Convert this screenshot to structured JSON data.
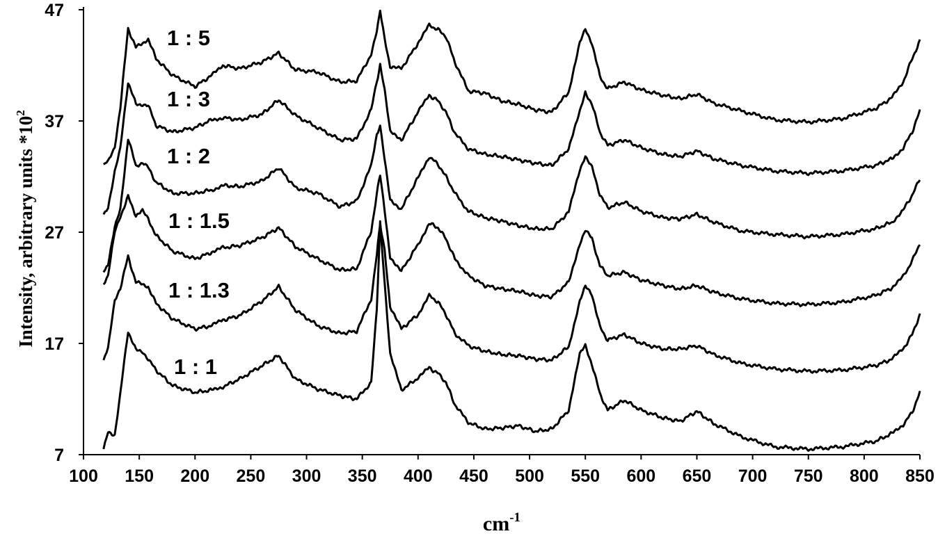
{
  "chart_data": {
    "type": "line",
    "xlabel": "cm",
    "xlabel_sup": "-1",
    "ylabel": "Intensity, arbitrary units *10",
    "ylabel_sup": "2",
    "xlim": [
      100,
      850
    ],
    "ylim": [
      7,
      47
    ],
    "x_ticks": [
      "100",
      "150",
      "200",
      "250",
      "300",
      "350",
      "400",
      "450",
      "500",
      "550",
      "600",
      "650",
      "700",
      "750",
      "800",
      "850"
    ],
    "y_ticks": [
      "7",
      "17",
      "27",
      "37",
      "47"
    ],
    "series": [
      {
        "name": "1 : 5",
        "x": [
          118,
          122,
          128,
          133,
          140,
          147,
          153,
          158,
          165,
          180,
          200,
          215,
          225,
          240,
          260,
          275,
          290,
          310,
          330,
          345,
          358,
          363,
          366,
          370,
          375,
          385,
          400,
          410,
          418,
          425,
          433,
          445,
          460,
          475,
          490,
          505,
          520,
          535,
          545,
          550,
          556,
          563,
          570,
          585,
          600,
          620,
          635,
          650,
          665,
          690,
          720,
          750,
          780,
          810,
          825,
          835,
          843,
          850
        ],
        "values": [
          33.1,
          33.3,
          34.7,
          38.2,
          45.3,
          43.6,
          44.0,
          44.4,
          42.6,
          41.1,
          40.1,
          41.1,
          42.0,
          41.7,
          42.3,
          43.1,
          41.6,
          41.4,
          40.5,
          40.6,
          43.0,
          45.0,
          47.0,
          44.5,
          41.8,
          41.7,
          44.0,
          45.6,
          45.2,
          44.6,
          42.3,
          39.7,
          39.5,
          38.8,
          38.5,
          38.0,
          37.8,
          39.6,
          44.0,
          45.2,
          44.0,
          41.0,
          39.9,
          40.5,
          39.8,
          39.3,
          39.0,
          39.4,
          38.6,
          37.9,
          37.1,
          36.9,
          37.2,
          38.1,
          39.1,
          40.5,
          42.6,
          44.2
        ]
      },
      {
        "name": "1 : 3",
        "x": [
          118,
          122,
          128,
          133,
          140,
          147,
          153,
          158,
          165,
          180,
          200,
          215,
          225,
          240,
          260,
          275,
          290,
          310,
          330,
          345,
          358,
          363,
          366,
          370,
          375,
          385,
          400,
          410,
          418,
          425,
          433,
          445,
          460,
          475,
          490,
          505,
          520,
          535,
          545,
          550,
          556,
          563,
          570,
          585,
          600,
          620,
          635,
          650,
          665,
          690,
          720,
          750,
          780,
          810,
          825,
          835,
          843,
          850
        ],
        "values": [
          28.6,
          29.2,
          32.5,
          34.5,
          40.5,
          38.5,
          38.5,
          38.4,
          36.6,
          36.0,
          36.4,
          37.1,
          37.3,
          37.1,
          37.6,
          38.9,
          37.5,
          36.4,
          35.3,
          35.4,
          38.0,
          40.5,
          42.0,
          39.8,
          36.0,
          35.3,
          37.8,
          39.3,
          38.8,
          37.8,
          35.9,
          34.5,
          34.0,
          33.8,
          33.5,
          33.2,
          33.0,
          34.5,
          37.8,
          39.6,
          38.5,
          36.0,
          34.8,
          35.3,
          34.6,
          34.0,
          33.8,
          34.3,
          33.6,
          33.0,
          32.5,
          32.3,
          32.5,
          33.0,
          33.6,
          34.6,
          36.0,
          37.9
        ]
      },
      {
        "name": "1 : 2",
        "x": [
          118,
          122,
          128,
          133,
          140,
          147,
          153,
          158,
          165,
          180,
          200,
          215,
          225,
          240,
          260,
          275,
          290,
          310,
          330,
          345,
          358,
          363,
          366,
          370,
          375,
          385,
          400,
          410,
          418,
          425,
          433,
          445,
          460,
          475,
          490,
          505,
          520,
          535,
          545,
          550,
          556,
          563,
          570,
          585,
          600,
          620,
          635,
          650,
          665,
          690,
          720,
          750,
          780,
          810,
          825,
          835,
          843,
          850
        ],
        "values": [
          23.4,
          24.2,
          27.4,
          29.0,
          35.4,
          33.0,
          33.2,
          32.8,
          31.5,
          30.5,
          30.5,
          30.8,
          31.2,
          31.1,
          31.6,
          32.8,
          31.0,
          30.5,
          29.3,
          29.8,
          33.0,
          35.8,
          36.5,
          33.5,
          29.9,
          29.1,
          31.9,
          33.8,
          33.1,
          32.0,
          30.5,
          28.9,
          28.3,
          28.0,
          27.6,
          27.3,
          27.3,
          28.8,
          32.6,
          33.9,
          32.8,
          30.4,
          29.2,
          29.7,
          28.9,
          28.3,
          28.2,
          28.6,
          27.9,
          27.1,
          26.8,
          26.6,
          26.8,
          27.3,
          27.9,
          29.0,
          30.3,
          31.8
        ]
      },
      {
        "name": "1 : 1.5",
        "x": [
          118,
          122,
          128,
          133,
          140,
          147,
          153,
          158,
          165,
          180,
          200,
          215,
          225,
          240,
          260,
          275,
          290,
          310,
          330,
          345,
          358,
          363,
          366,
          370,
          375,
          385,
          400,
          410,
          418,
          425,
          433,
          445,
          460,
          475,
          490,
          505,
          520,
          535,
          545,
          550,
          556,
          563,
          570,
          585,
          600,
          620,
          635,
          650,
          665,
          690,
          720,
          750,
          780,
          810,
          825,
          835,
          843,
          850
        ],
        "values": [
          22.3,
          23.1,
          27.0,
          28.4,
          30.2,
          28.5,
          28.9,
          28.2,
          26.7,
          25.3,
          24.6,
          25.2,
          25.6,
          25.8,
          26.5,
          27.4,
          25.7,
          24.6,
          23.6,
          23.7,
          27.1,
          30.5,
          32.2,
          29.0,
          24.8,
          23.5,
          25.9,
          27.8,
          27.4,
          26.4,
          24.6,
          23.1,
          22.2,
          21.9,
          21.7,
          21.3,
          21.2,
          22.5,
          26.0,
          27.2,
          26.4,
          24.0,
          23.1,
          23.4,
          22.7,
          22.2,
          21.9,
          22.2,
          21.6,
          21.0,
          20.6,
          20.5,
          20.7,
          21.3,
          22.0,
          23.0,
          24.4,
          26.0
        ]
      },
      {
        "name": "1 : 1.3",
        "x": [
          118,
          122,
          128,
          133,
          140,
          147,
          153,
          158,
          165,
          180,
          200,
          215,
          225,
          240,
          260,
          275,
          290,
          310,
          330,
          345,
          358,
          363,
          366,
          370,
          375,
          385,
          400,
          410,
          418,
          425,
          433,
          445,
          460,
          475,
          490,
          505,
          520,
          535,
          545,
          550,
          556,
          563,
          570,
          585,
          600,
          620,
          635,
          650,
          665,
          690,
          720,
          750,
          780,
          810,
          825,
          835,
          843,
          850
        ],
        "values": [
          15.5,
          16.5,
          20.9,
          22.0,
          24.8,
          22.5,
          22.3,
          22.1,
          20.6,
          19.2,
          18.3,
          18.6,
          19.1,
          19.5,
          20.8,
          22.1,
          20.0,
          18.6,
          17.9,
          18.1,
          21.0,
          25.0,
          27.8,
          25.5,
          20.3,
          18.3,
          19.6,
          21.3,
          20.7,
          19.6,
          17.9,
          16.8,
          16.3,
          16.0,
          15.9,
          15.6,
          15.5,
          16.7,
          20.8,
          22.1,
          21.4,
          18.5,
          17.3,
          17.8,
          17.0,
          16.5,
          16.5,
          16.8,
          16.0,
          15.2,
          14.7,
          14.5,
          14.6,
          15.0,
          15.6,
          16.5,
          17.8,
          19.6
        ]
      },
      {
        "name": "1 : 1",
        "x": [
          118,
          122,
          128,
          133,
          140,
          147,
          153,
          158,
          165,
          180,
          200,
          215,
          225,
          240,
          260,
          275,
          290,
          310,
          330,
          345,
          358,
          363,
          366,
          370,
          375,
          385,
          400,
          410,
          418,
          425,
          433,
          445,
          460,
          475,
          490,
          505,
          520,
          535,
          545,
          550,
          556,
          563,
          570,
          585,
          600,
          620,
          635,
          650,
          665,
          690,
          720,
          750,
          780,
          810,
          825,
          835,
          843,
          850
        ],
        "values": [
          7.5,
          9.0,
          8.8,
          12.5,
          18.1,
          16.4,
          16.3,
          15.6,
          14.6,
          13.2,
          12.6,
          12.8,
          13.1,
          13.8,
          15.0,
          15.9,
          13.8,
          12.9,
          12.3,
          12.0,
          13.5,
          20.0,
          27.9,
          22.5,
          16.0,
          12.8,
          13.9,
          14.8,
          14.3,
          13.5,
          11.5,
          9.9,
          9.3,
          9.4,
          9.6,
          9.1,
          9.3,
          11.0,
          16.0,
          16.8,
          15.1,
          12.5,
          11.0,
          11.9,
          11.0,
          10.3,
          10.0,
          10.9,
          9.8,
          8.6,
          7.7,
          7.5,
          7.7,
          8.2,
          8.9,
          9.7,
          10.8,
          12.6
        ]
      }
    ],
    "series_label_text": [
      "1 : 5",
      "1 : 3",
      "1 : 2",
      "1 : 1.5",
      "1 : 1.3",
      "1 : 1"
    ],
    "grid": false,
    "legend": "inline-labels"
  }
}
